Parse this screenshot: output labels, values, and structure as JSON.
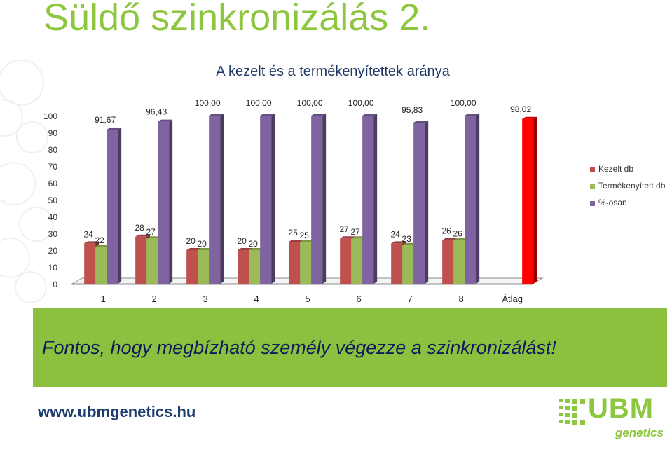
{
  "slide": {
    "title": "Süldő szinkronizálás 2.",
    "banner_text": "Fontos, hogy megbízható személy végezze a szinkronizálást!",
    "footer_url": "www.ubmgenetics.hu",
    "logo_word": "UBM",
    "logo_sub": "genetics"
  },
  "colors": {
    "title": "#8dc63f",
    "banner_bg": "#8cc13f",
    "banner_text": "#0d1a5c",
    "url": "#1d3d6e"
  },
  "chart_data": {
    "type": "bar",
    "title": "A kezelt és a termékenyítettek aránya",
    "categories": [
      "1",
      "2",
      "3",
      "4",
      "5",
      "6",
      "7",
      "8",
      "Átlag"
    ],
    "yticks": [
      "0",
      "10",
      "20",
      "30",
      "40",
      "50",
      "60",
      "70",
      "80",
      "90",
      "100"
    ],
    "ylim": [
      0,
      100
    ],
    "legend_position": "right",
    "series": [
      {
        "name": "Kezelt db",
        "color": "#c0504d",
        "values": [
          24,
          28,
          20,
          20,
          25,
          27,
          24,
          26,
          null
        ],
        "labels": [
          "24",
          "28",
          "20",
          "20",
          "25",
          "27",
          "24",
          "26",
          ""
        ]
      },
      {
        "name": "Termékenyített db",
        "color": "#9bbb59",
        "values": [
          22,
          27,
          20,
          20,
          25,
          27,
          23,
          26,
          null
        ],
        "labels": [
          "22",
          "27",
          "20",
          "20",
          "25",
          "27",
          "23",
          "26",
          ""
        ]
      },
      {
        "name": "%-osan",
        "color": "#8064a2",
        "values": [
          91.67,
          96.43,
          100,
          100,
          100,
          100,
          95.83,
          100,
          98.02
        ],
        "labels": [
          "91,67",
          "96,43",
          "100,00",
          "100,00",
          "100,00",
          "100,00",
          "95,83",
          "100,00",
          "98,02"
        ]
      }
    ],
    "highlight_color": "#ff0000"
  }
}
